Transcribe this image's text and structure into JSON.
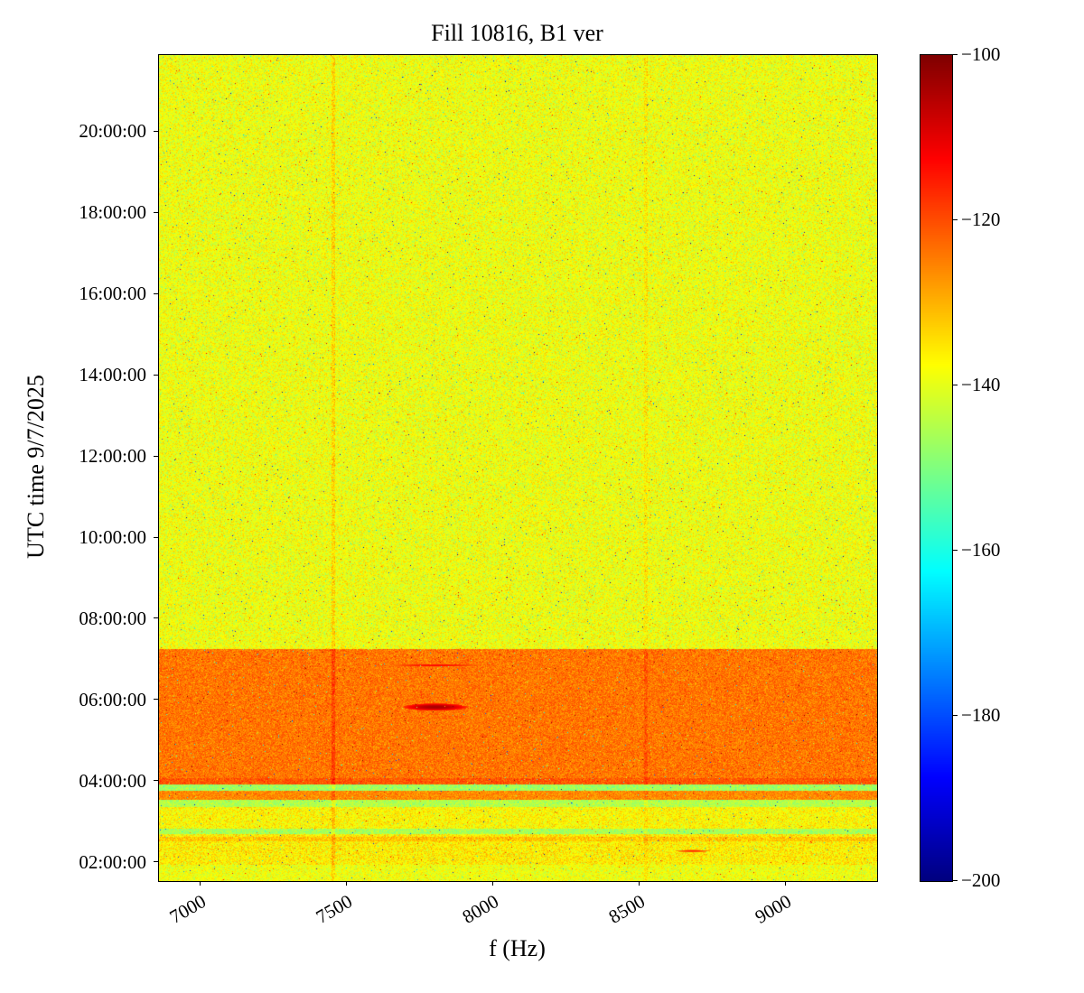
{
  "title": "Fill 10816, B1 ver",
  "axes": {
    "xlabel": "f (Hz)",
    "ylabel": "UTC time 9/7/2025",
    "x_ticks": [
      "7000",
      "7500",
      "8000",
      "8500",
      "9000"
    ],
    "y_ticks": [
      "02:00:00",
      "04:00:00",
      "06:00:00",
      "08:00:00",
      "10:00:00",
      "12:00:00",
      "14:00:00",
      "16:00:00",
      "18:00:00",
      "20:00:00"
    ]
  },
  "colorbar": {
    "colormap": "jet",
    "vmin": -200,
    "vmax": -100,
    "tick_values": [
      -100,
      -120,
      -140,
      -160,
      -180,
      -200
    ],
    "tick_labels": [
      "−100",
      "−120",
      "−140",
      "−160",
      "−180",
      "−200"
    ]
  },
  "chart_data": {
    "type": "heatmap",
    "title": "Fill 10816, B1 ver",
    "xlabel": "f (Hz)",
    "ylabel": "UTC time 9/7/2025",
    "x_range_hz": [
      6855,
      9310
    ],
    "x_tick_values_hz": [
      7000,
      7500,
      8000,
      8500,
      9000
    ],
    "y_range_hours_utc": [
      1.55,
      21.9
    ],
    "y_tick_values_hours": [
      2,
      4,
      6,
      8,
      10,
      12,
      14,
      16,
      18,
      20
    ],
    "value_range_db": [
      -200,
      -100
    ],
    "grid": false,
    "legend": "colorbar-right",
    "background": {
      "level_db": -139,
      "noise_db": 7
    },
    "bands": [
      {
        "t_start": 4.07,
        "t_end": 7.25,
        "level_db": -124,
        "noise_db": 5.5
      },
      {
        "t_start": 3.93,
        "t_end": 4.07,
        "level_db": -121,
        "noise_db": 5
      },
      {
        "t_start": 3.76,
        "t_end": 3.93,
        "level_db": -147,
        "noise_db": 5
      },
      {
        "t_start": 3.55,
        "t_end": 3.76,
        "level_db": -126,
        "noise_db": 5
      },
      {
        "t_start": 3.36,
        "t_end": 3.55,
        "level_db": -145,
        "noise_db": 5
      },
      {
        "t_start": 2.84,
        "t_end": 3.36,
        "level_db": -137,
        "noise_db": 6.5
      },
      {
        "t_start": 2.7,
        "t_end": 2.84,
        "level_db": -146,
        "noise_db": 5
      },
      {
        "t_start": 2.52,
        "t_end": 2.62,
        "level_db": -132,
        "noise_db": 6
      },
      {
        "t_start": 1.95,
        "t_end": 2.7,
        "level_db": -136,
        "noise_db": 7
      },
      {
        "t_start": 1.55,
        "t_end": 1.95,
        "level_db": -139,
        "noise_db": 6
      }
    ],
    "vertical_lines": [
      {
        "f_hz": 7450,
        "halfwidth_hz": 5,
        "boost_db": 5
      },
      {
        "f_hz": 8520,
        "halfwidth_hz": 5,
        "boost_db": 3
      }
    ],
    "features": [
      {
        "type": "blob",
        "f_hz": 7800,
        "t_hours": 5.83,
        "f_halfwidth_hz": 110,
        "t_halfheight_hours": 0.09,
        "peak_db": -104
      },
      {
        "type": "blob",
        "f_hz": 7800,
        "t_hours": 6.86,
        "f_halfwidth_hz": 160,
        "t_halfheight_hours": 0.035,
        "peak_db": -112
      },
      {
        "type": "blob",
        "f_hz": 8680,
        "t_hours": 2.28,
        "f_halfwidth_hz": 60,
        "t_halfheight_hours": 0.03,
        "peak_db": -116
      }
    ],
    "specks": {
      "hot_prob": 0.0025,
      "hot_boost_db": [
        12,
        28
      ],
      "cold_prob": 0.004,
      "cold_drop_db": [
        10,
        38
      ],
      "deep_prob": 0.0008,
      "deep_drop_db": [
        45,
        60
      ]
    }
  }
}
